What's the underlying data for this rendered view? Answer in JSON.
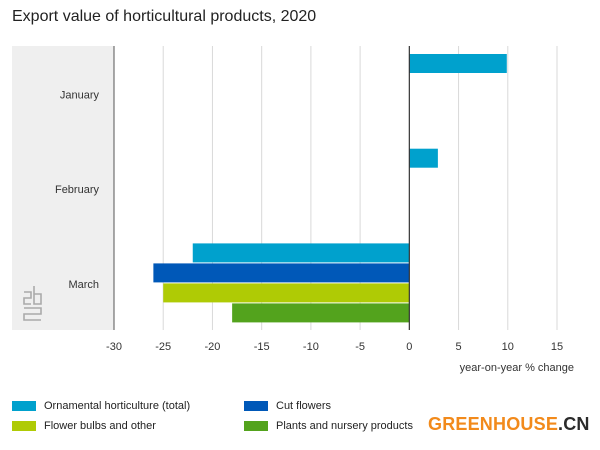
{
  "chart_data": {
    "type": "bar",
    "orientation": "horizontal",
    "title": "Export value of horticultural products, 2020",
    "xlabel": "year-on-year % change",
    "ylabel": "",
    "categories": [
      "January",
      "February",
      "March"
    ],
    "xlim": [
      -30,
      15
    ],
    "xticks": [
      -30,
      -25,
      -20,
      -15,
      -10,
      -5,
      0,
      5,
      10,
      15
    ],
    "grid": true,
    "legend_position": "bottom",
    "series": [
      {
        "name": "Ornamental horticulture (total)",
        "color": "#00a1cd",
        "values": [
          9.9,
          2.9,
          -22
        ]
      },
      {
        "name": "Cut flowers",
        "color": "#0058b8",
        "values": [
          null,
          null,
          -26
        ]
      },
      {
        "name": "Flower bulbs and other",
        "color": "#afcb05",
        "values": [
          null,
          null,
          -25
        ]
      },
      {
        "name": "Plants and nursery products",
        "color": "#53a31d",
        "values": [
          null,
          null,
          -18
        ]
      }
    ]
  },
  "brand": {
    "main": "GREENHOUSE",
    "suffix": ".CN"
  },
  "icons": {
    "logo": "cbs-logo-icon"
  }
}
